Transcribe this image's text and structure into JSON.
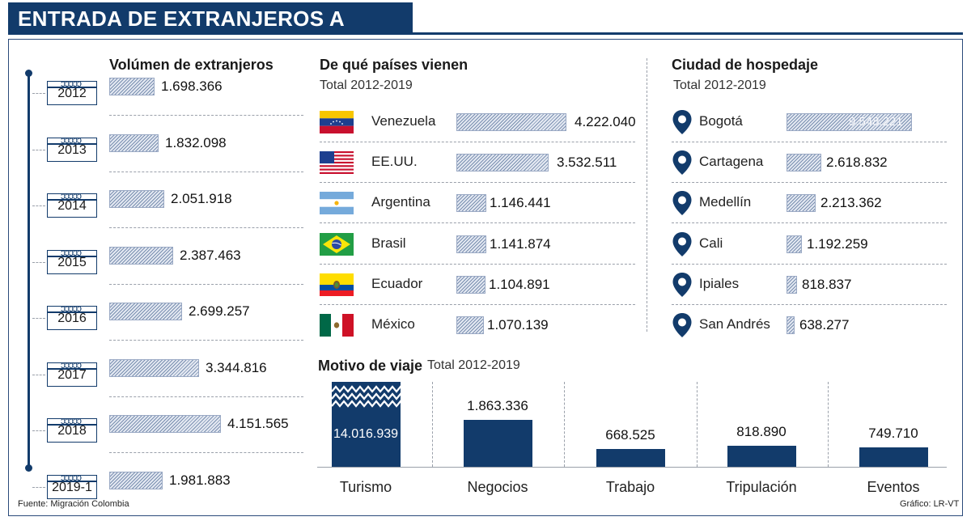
{
  "title": "ENTRADA DE EXTRANJEROS A COLOMBIA",
  "volume": {
    "header": "Volúmen de extranjeros",
    "years": [
      "2012",
      "2013",
      "2014",
      "2015",
      "2016",
      "2017",
      "2018",
      "2019-1"
    ],
    "values": [
      "1.698.366",
      "1.832.098",
      "2.051.918",
      "2.387.463",
      "2.699.257",
      "3.344.816",
      "4.151.565",
      "1.981.883"
    ]
  },
  "countries": {
    "header": "De qué países vienen",
    "subtitle": "Total 2012-2019",
    "items": [
      {
        "name": "Venezuela",
        "value": "4.222.040",
        "flag": "venezuela-flag-icon"
      },
      {
        "name": "EE.UU.",
        "value": "3.532.511",
        "flag": "usa-flag-icon"
      },
      {
        "name": "Argentina",
        "value": "1.146.441",
        "flag": "argentina-flag-icon"
      },
      {
        "name": "Brasil",
        "value": "1.141.874",
        "flag": "brazil-flag-icon"
      },
      {
        "name": "Ecuador",
        "value": "1.104.891",
        "flag": "ecuador-flag-icon"
      },
      {
        "name": "México",
        "value": "1.070.139",
        "flag": "mexico-flag-icon"
      }
    ]
  },
  "cities": {
    "header": "Ciudad de hospedaje",
    "subtitle": "Total 2012-2019",
    "items": [
      {
        "name": "Bogotá",
        "value": "9.548.221"
      },
      {
        "name": "Cartagena",
        "value": "2.618.832"
      },
      {
        "name": "Medellín",
        "value": "2.213.362"
      },
      {
        "name": "Cali",
        "value": "1.192.259"
      },
      {
        "name": "Ipiales",
        "value": "818.837"
      },
      {
        "name": "San Andrés",
        "value": "638.277"
      }
    ]
  },
  "motive": {
    "header": "Motivo de viaje",
    "subtitle": "Total 2012-2019",
    "items": [
      {
        "name": "Turismo",
        "value": "14.016.939"
      },
      {
        "name": "Negocios",
        "value": "1.863.336"
      },
      {
        "name": "Trabajo",
        "value": "668.525"
      },
      {
        "name": "Tripulación",
        "value": "818.890"
      },
      {
        "name": "Eventos",
        "value": "749.710"
      }
    ]
  },
  "footer": {
    "source": "Fuente: Migración Colombia",
    "credit": "Gráfico: LR-VT"
  },
  "colors": {
    "navy": "#123b6b",
    "bar_hatch": "#7a8fb0"
  },
  "chart_data": [
    {
      "type": "bar",
      "title": "Volúmen de extranjeros",
      "categories": [
        "2012",
        "2013",
        "2014",
        "2015",
        "2016",
        "2017",
        "2018",
        "2019-1"
      ],
      "values": [
        1698366,
        1832098,
        2051918,
        2387463,
        2699257,
        3344816,
        4151565,
        1981883
      ]
    },
    {
      "type": "bar",
      "title": "De qué países vienen",
      "subtitle": "Total 2012-2019",
      "categories": [
        "Venezuela",
        "EE.UU.",
        "Argentina",
        "Brasil",
        "Ecuador",
        "México"
      ],
      "values": [
        4222040,
        3532511,
        1146441,
        1141874,
        1104891,
        1070139
      ]
    },
    {
      "type": "bar",
      "title": "Ciudad de hospedaje",
      "subtitle": "Total 2012-2019",
      "categories": [
        "Bogotá",
        "Cartagena",
        "Medellín",
        "Cali",
        "Ipiales",
        "San Andrés"
      ],
      "values": [
        9548221,
        2618832,
        2213362,
        1192259,
        818837,
        638277
      ]
    },
    {
      "type": "bar",
      "title": "Motivo de viaje",
      "subtitle": "Total 2012-2019",
      "categories": [
        "Turismo",
        "Negocios",
        "Trabajo",
        "Tripulación",
        "Eventos"
      ],
      "values": [
        14016939,
        1863336,
        668525,
        818890,
        749710
      ]
    }
  ]
}
